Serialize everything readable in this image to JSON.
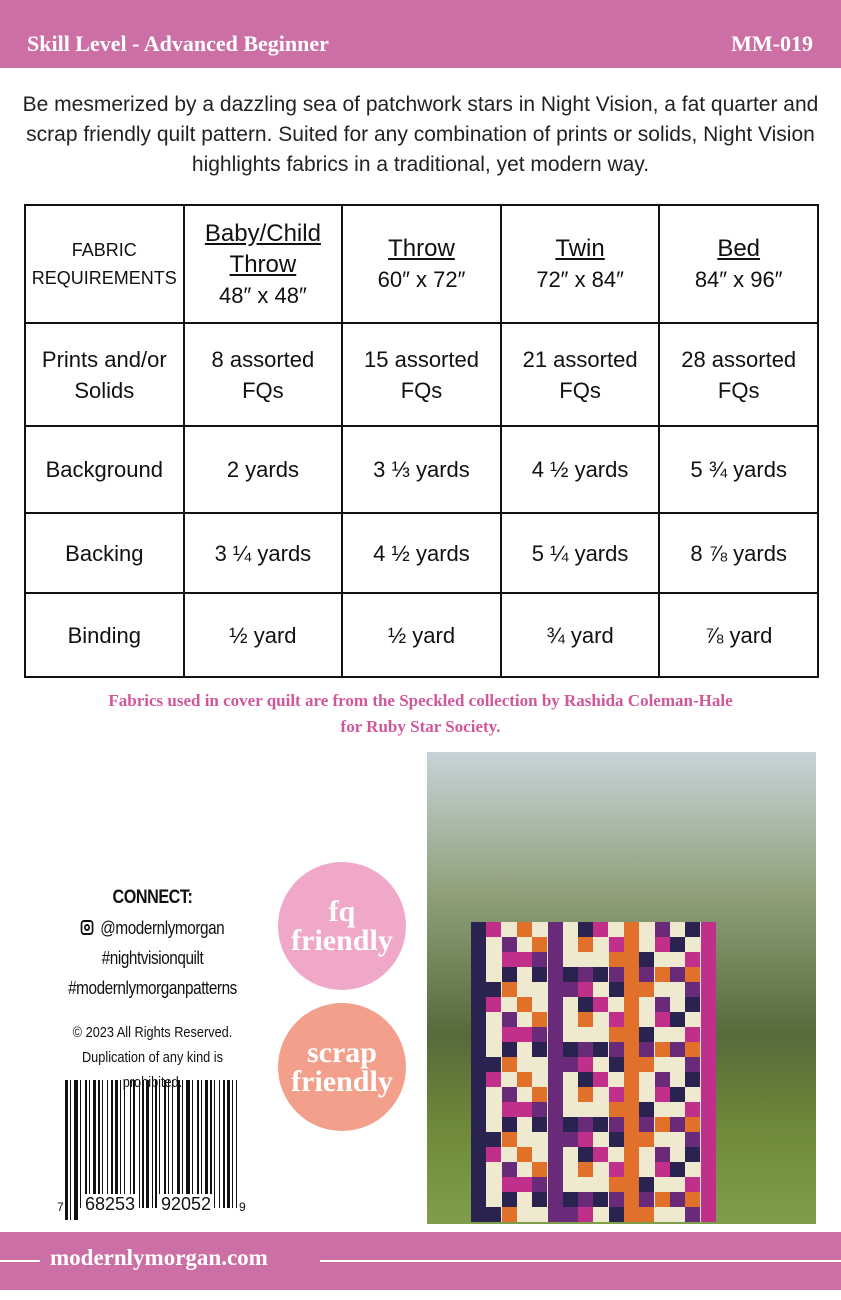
{
  "header": {
    "skill": "Skill Level - Advanced Beginner",
    "code": "MM-019"
  },
  "intro": "Be mesmerized by a dazzling sea of patchwork stars in Night Vision, a fat quarter and scrap friendly quilt pattern.  Suited for any combination of prints or solids, Night Vision highlights fabrics in a traditional, yet modern way.",
  "table": {
    "corner": [
      "FABRIC",
      "REQUIREMENTS"
    ],
    "columns": [
      {
        "name": [
          "Baby/Child",
          "Throw"
        ],
        "size": "48″ x 48″"
      },
      {
        "name": [
          "Throw"
        ],
        "size": "60″ x 72″"
      },
      {
        "name": [
          "Twin"
        ],
        "size": "72″ x 84″"
      },
      {
        "name": [
          "Bed"
        ],
        "size": "84″ x 96″"
      }
    ],
    "rows": [
      {
        "label": [
          "Prints and/or",
          "Solids"
        ],
        "values": [
          [
            "8 assorted",
            "FQs"
          ],
          [
            "15 assorted",
            "FQs"
          ],
          [
            "21 assorted",
            "FQs"
          ],
          [
            "28 assorted",
            "FQs"
          ]
        ]
      },
      {
        "label": [
          "Background"
        ],
        "values": [
          [
            "2 yards"
          ],
          [
            "3 ⅓ yards"
          ],
          [
            "4 ½ yards"
          ],
          [
            "5 ¾ yards"
          ]
        ]
      },
      {
        "label": [
          "Backing"
        ],
        "values": [
          [
            "3 ¼ yards"
          ],
          [
            "4 ½ yards"
          ],
          [
            "5 ¼ yards"
          ],
          [
            "8 ⅞ yards"
          ]
        ]
      },
      {
        "label": [
          "Binding"
        ],
        "values": [
          [
            "½ yard"
          ],
          [
            "½ yard"
          ],
          [
            "¾ yard"
          ],
          [
            "⅞ yard"
          ]
        ]
      }
    ]
  },
  "credit": [
    "Fabrics used in cover quilt are from the Speckled collection by Rashida Coleman-Hale",
    "for Ruby Star Society."
  ],
  "connect": {
    "title": "CONNECT:",
    "instagram": "@modernlymorgan",
    "tags": [
      "#nightvisionquilt",
      "#modernlymorganpatterns"
    ],
    "icon": "instagram-icon"
  },
  "copyright": [
    "© 2023  All Rights Reserved.",
    "Duplication of any kind is prohibited."
  ],
  "barcode": {
    "digits": [
      "7",
      "68253",
      "92052",
      "9"
    ]
  },
  "badges": [
    {
      "lines": [
        "fq",
        "friendly"
      ],
      "color": "#f0a8c8"
    },
    {
      "lines": [
        "scrap",
        "friendly"
      ],
      "color": "#f2a08b"
    }
  ],
  "footer": {
    "site": "modernlymorgan.com"
  },
  "colors": {
    "brand": "#cc6fa4",
    "credit": "#d0589a"
  }
}
